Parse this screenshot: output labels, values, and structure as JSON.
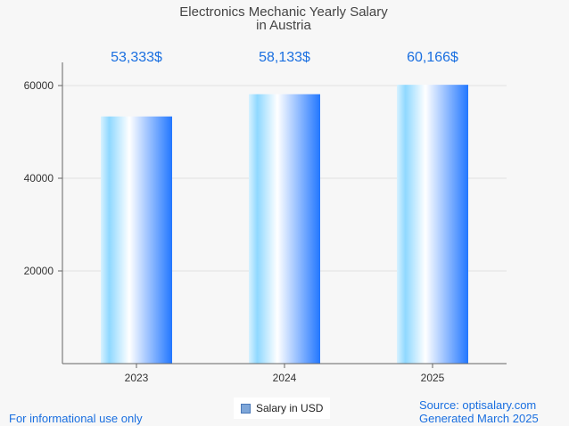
{
  "chart_data": {
    "type": "bar",
    "title_lines": [
      "Electronics Mechanic Yearly Salary",
      "in Austria"
    ],
    "categories": [
      "2023",
      "2024",
      "2025"
    ],
    "series": [
      {
        "name": "Salary in USD",
        "values": [
          53333,
          58133,
          60166
        ]
      }
    ],
    "data_labels": [
      "53,333$",
      "58,133$",
      "60,166$"
    ],
    "ylim": [
      0,
      65000
    ],
    "yticks": [
      20000,
      40000,
      60000
    ],
    "grid": true,
    "legend_position": "bottom-center"
  },
  "colors": {
    "bar_light": "#d8f2ff",
    "bar_mid": "#ffffff",
    "bar_dark": "#2277ff",
    "accent": "#1a6fe0"
  },
  "footer": {
    "left": "For informational use only",
    "source": "Source: optisalary.com",
    "generated": "Generated March 2025"
  }
}
